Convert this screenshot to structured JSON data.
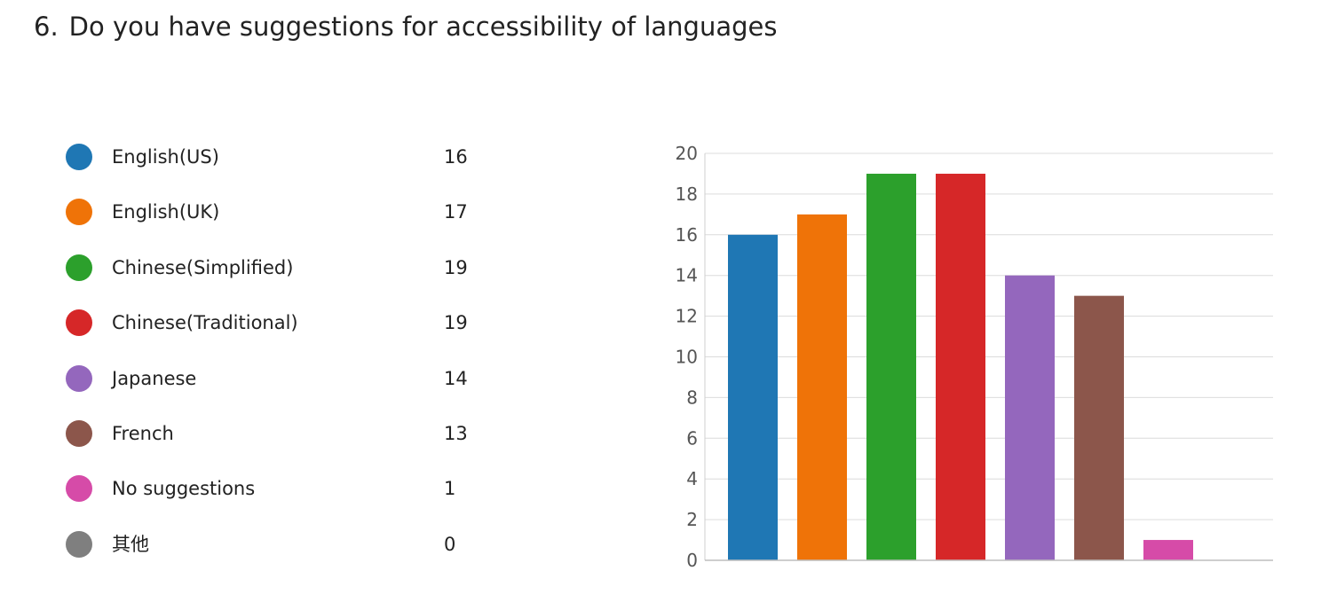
{
  "question": {
    "number": "6.",
    "text": "Do you have suggestions for accessibility of languages"
  },
  "legend": [
    {
      "label": "English(US)",
      "count": "16",
      "color": "#1f77b4"
    },
    {
      "label": "English(UK)",
      "count": "17",
      "color": "#ef7308"
    },
    {
      "label": "Chinese(Simplified)",
      "count": "19",
      "color": "#2ca02c"
    },
    {
      "label": "Chinese(Traditional)",
      "count": "19",
      "color": "#d62728"
    },
    {
      "label": "Japanese",
      "count": "14",
      "color": "#9467bd"
    },
    {
      "label": "French",
      "count": "13",
      "color": "#8c564b"
    },
    {
      "label": "No suggestions",
      "count": "1",
      "color": "#d64ba8"
    },
    {
      "label": "其他",
      "count": "0",
      "color": "#7f7f7f"
    }
  ],
  "chart_data": {
    "type": "bar",
    "categories": [
      "English(US)",
      "English(UK)",
      "Chinese(Simplified)",
      "Chinese(Traditional)",
      "Japanese",
      "French",
      "No suggestions",
      "其他"
    ],
    "values": [
      16,
      17,
      19,
      19,
      14,
      13,
      1,
      0
    ],
    "colors": [
      "#1f77b4",
      "#ef7308",
      "#2ca02c",
      "#d62728",
      "#9467bd",
      "#8c564b",
      "#d64ba8",
      "#7f7f7f"
    ],
    "ylim": [
      0,
      20
    ],
    "yticks": [
      0,
      2,
      4,
      6,
      8,
      10,
      12,
      14,
      16,
      18,
      20
    ],
    "grid": true,
    "xlabel": "",
    "ylabel": "",
    "title": ""
  }
}
